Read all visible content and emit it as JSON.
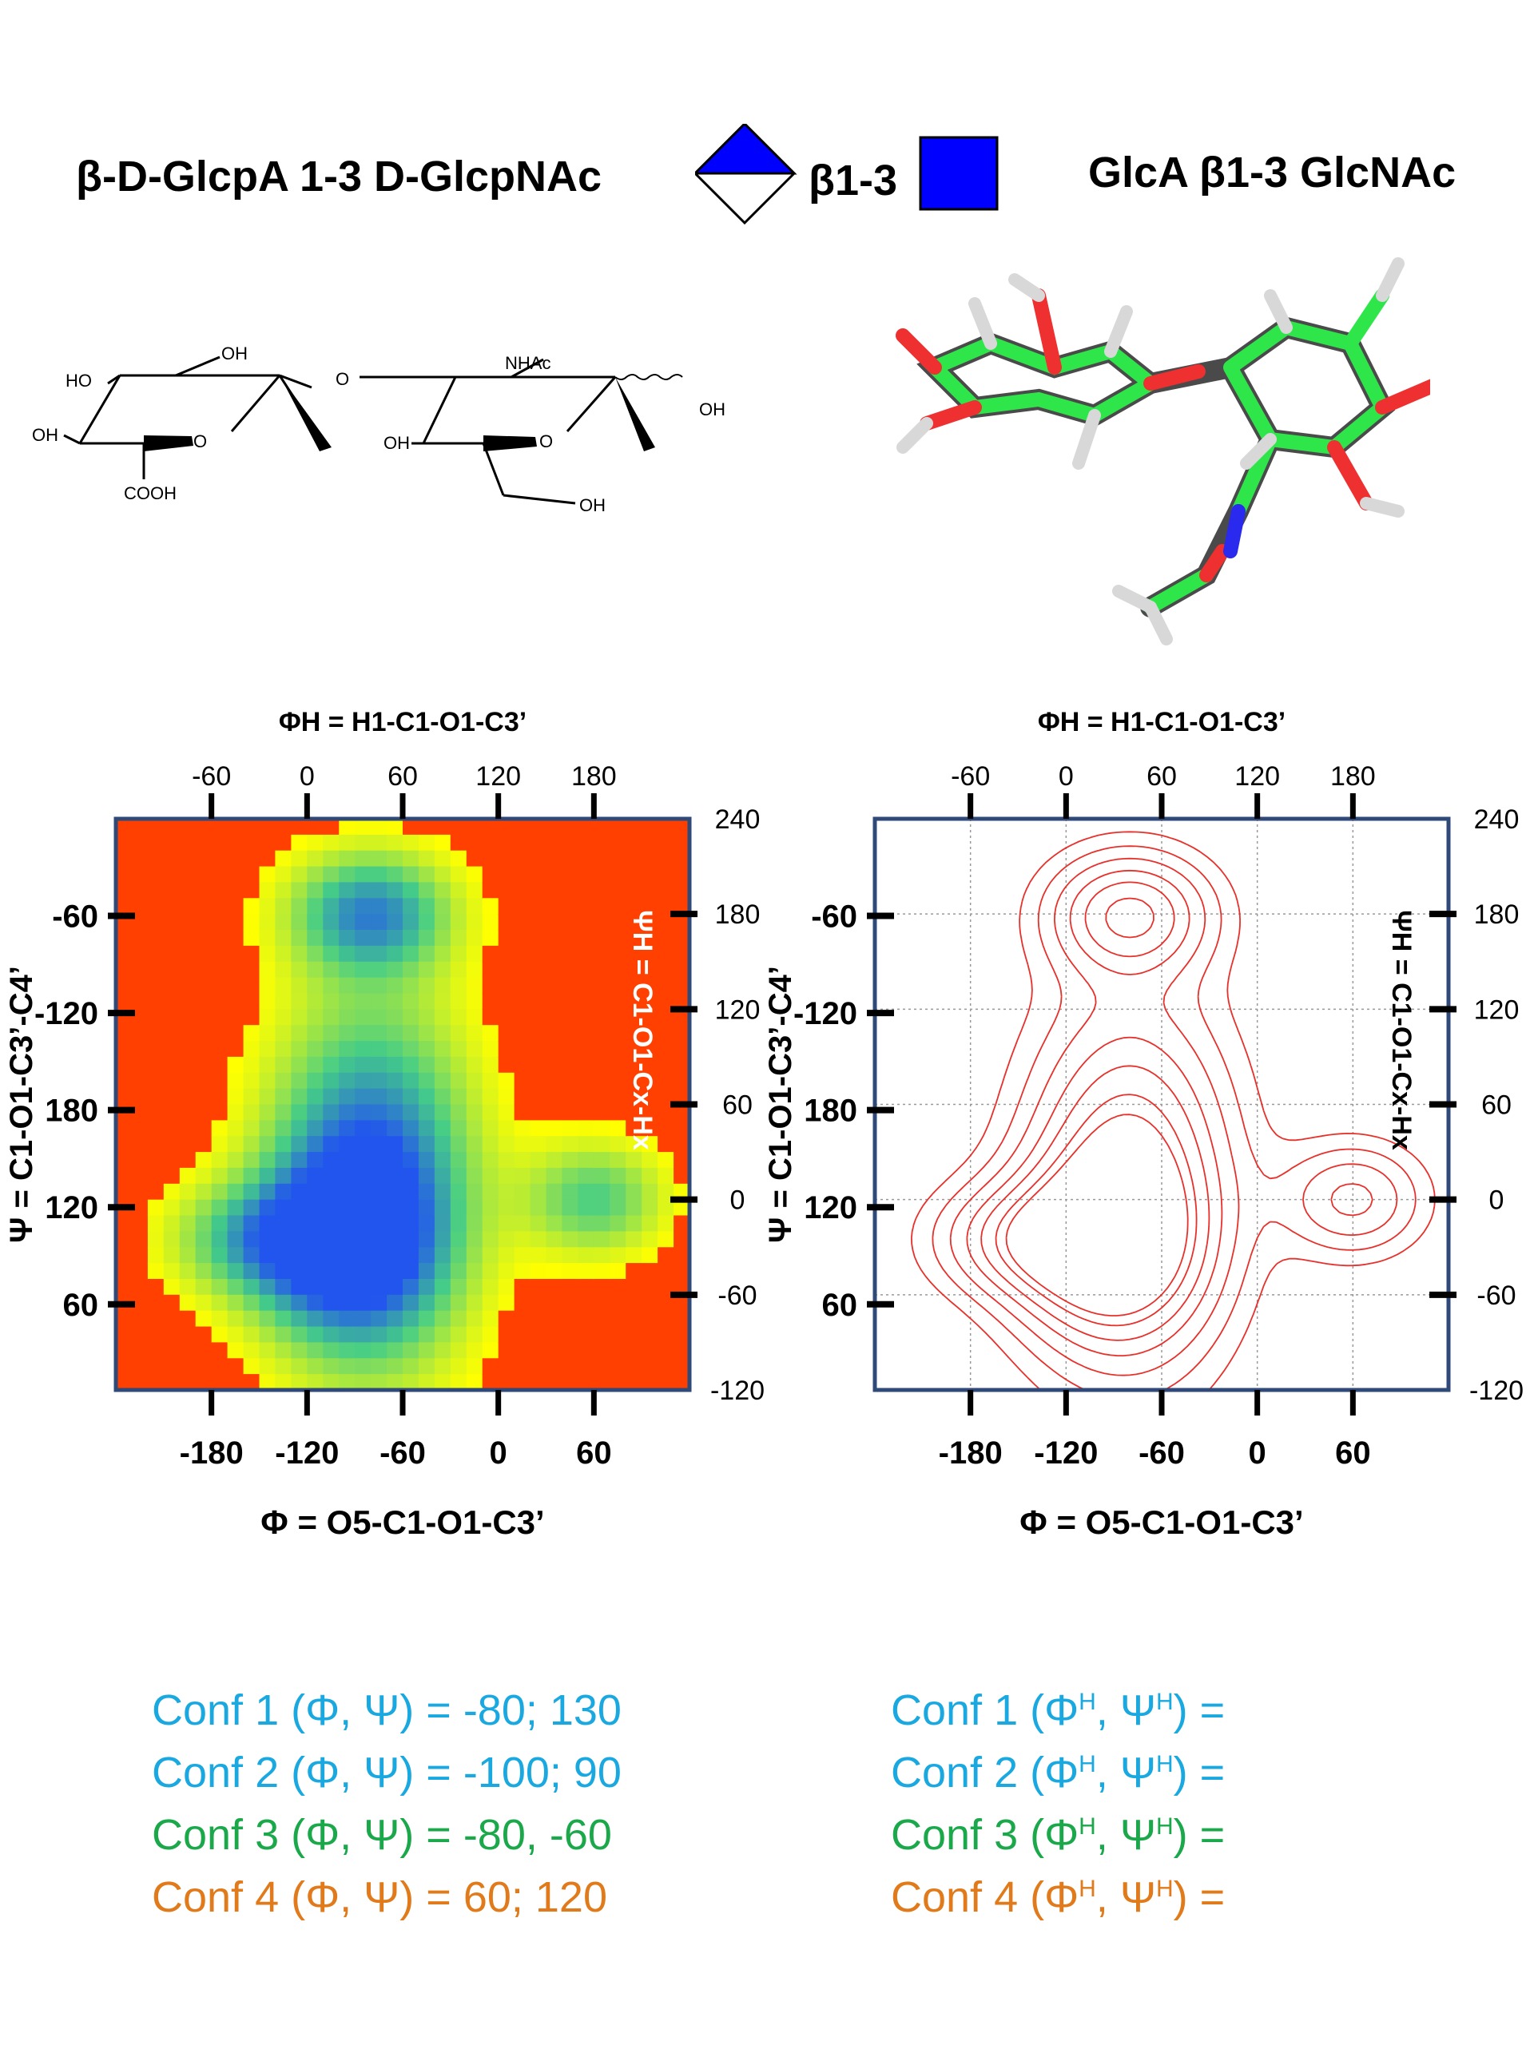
{
  "header": {
    "left_name": "β-D-GlcpA 1-3 D-GlcpNAc",
    "linkage_label": "β1-3",
    "right_name": "GlcA β1-3 GlcNAc"
  },
  "structure_2d": {
    "labels": [
      "HO",
      "OH",
      "OH",
      "COOH",
      "O",
      "O",
      "NHAc",
      "OH",
      "OH",
      "O",
      "OH"
    ]
  },
  "chart_data": [
    {
      "type": "heatmap",
      "title": "",
      "top_xlabel": "ΦH = H1-C1-O1-C3’",
      "top_xticks": [
        "-60",
        "0",
        "60",
        "120",
        "180"
      ],
      "bottom_xlabel": "Φ = O5-C1-O1-C3’",
      "bottom_xticks": [
        "-180",
        "-120",
        "-60",
        "0",
        "60"
      ],
      "left_ylabel": "Ψ = C1-O1-C3’-C4’",
      "left_yticks": [
        "-60",
        "-120",
        "180",
        "120",
        "60"
      ],
      "right_ylabel": "ΨH = C1-O1-Cx-Hx",
      "right_yticks": [
        "240",
        "180",
        "120",
        "60",
        "0",
        "-60",
        "-120"
      ],
      "xlim": [
        -240,
        120
      ],
      "ylim": [
        0,
        360
      ],
      "colormap": [
        "#ff4000",
        "#ffff00",
        "#44cc88",
        "#2255ee"
      ],
      "regions": [
        {
          "phi": -80,
          "psi": 130,
          "sigma_phi": 42,
          "sigma_psi": 75,
          "peak": 1.0
        },
        {
          "phi": -100,
          "psi": 90,
          "sigma_phi": 40,
          "sigma_psi": 38,
          "peak": 0.7
        },
        {
          "phi": -150,
          "psi": 95,
          "sigma_phi": 38,
          "sigma_psi": 24,
          "peak": 0.5
        },
        {
          "phi": -80,
          "psi": 300,
          "sigma_phi": 34,
          "sigma_psi": 26,
          "peak": 0.78
        },
        {
          "phi": 60,
          "psi": 120,
          "sigma_phi": 30,
          "sigma_psi": 24,
          "peak": 0.52
        }
      ]
    },
    {
      "type": "contour",
      "title": "",
      "top_xlabel": "ΦH = H1-C1-O1-C3’",
      "top_xticks": [
        "-60",
        "0",
        "60",
        "120",
        "180"
      ],
      "bottom_xlabel": "Φ = O5-C1-O1-C3’",
      "bottom_xticks": [
        "-180",
        "-120",
        "-60",
        "0",
        "60"
      ],
      "left_ylabel": "Ψ = C1-O1-C3’-C4’",
      "left_yticks": [
        "-60",
        "-120",
        "180",
        "120",
        "60"
      ],
      "right_ylabel": "ΨH = C1-O1-Cx-Hx",
      "right_yticks": [
        "240",
        "180",
        "120",
        "60",
        "0",
        "-60",
        "-120"
      ],
      "xlim": [
        -240,
        120
      ],
      "ylim": [
        0,
        360
      ],
      "grid": true,
      "line_color": "#e8302a",
      "levels": [
        0.12,
        0.22,
        0.34,
        0.48,
        0.62,
        0.78,
        0.9
      ]
    }
  ],
  "conformations": [
    {
      "text": "Conf 1 (Φ, Ψ) = -80; 130",
      "color": "#1aa8e0"
    },
    {
      "text": "Conf 2 (Φ, Ψ) = -100; 90",
      "color": "#1aa8e0"
    },
    {
      "text": "Conf 3 (Φ, Ψ) =  -80, -60",
      "color": "#1aa84a"
    },
    {
      "text": "Conf 4 (Φ, Ψ) =   60; 120",
      "color": "#e07a1a"
    }
  ],
  "conformations_h": [
    {
      "prefix": "Conf 1 (Φ",
      "mid": ", Ψ",
      "suffix": ") =",
      "color": "#1aa8e0"
    },
    {
      "prefix": "Conf 2 (Φ",
      "mid": ", Ψ",
      "suffix": ") =",
      "color": "#1aa8e0"
    },
    {
      "prefix": "Conf 3 (Φ",
      "mid": ", Ψ",
      "suffix": ") =",
      "color": "#1aa84a"
    },
    {
      "prefix": "Conf 4 (Φ",
      "mid": ", Ψ",
      "suffix": ") =",
      "color": "#e07a1a"
    }
  ]
}
